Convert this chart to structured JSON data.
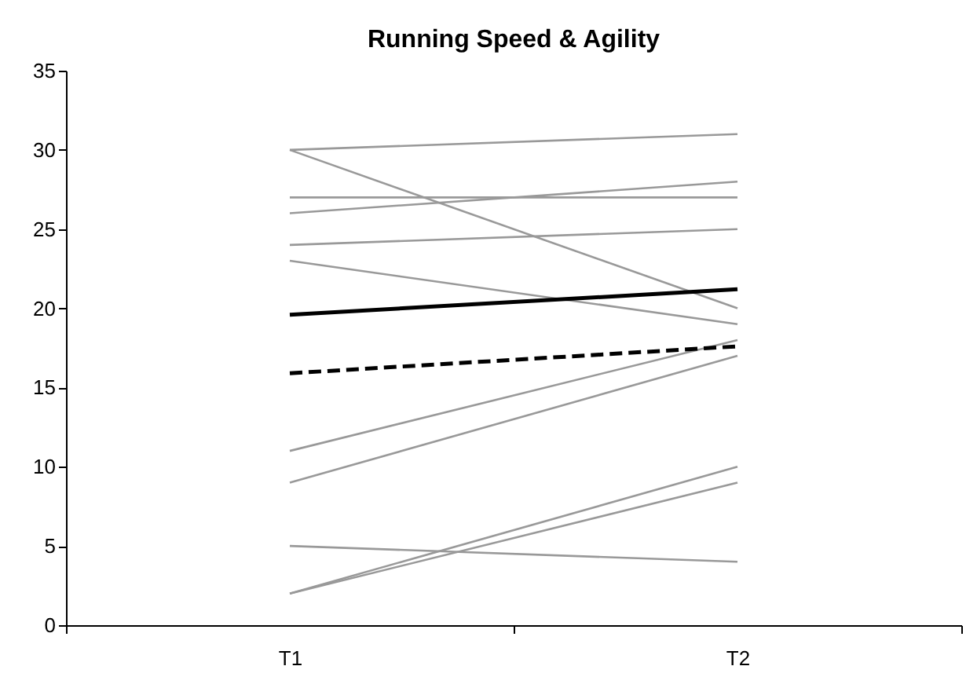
{
  "chart_data": {
    "type": "line",
    "title": "Running Speed & Agility",
    "categories": [
      "T1",
      "T2"
    ],
    "ylim": [
      0,
      35
    ],
    "yticks": [
      0,
      5,
      10,
      15,
      20,
      25,
      30,
      35
    ],
    "grid": false,
    "marker": "none",
    "series": [
      {
        "color": "#999999",
        "values": [
          30,
          31
        ]
      },
      {
        "color": "#999999",
        "values": [
          30,
          20
        ]
      },
      {
        "color": "#999999",
        "values": [
          27,
          27
        ]
      },
      {
        "color": "#999999",
        "values": [
          26,
          28
        ]
      },
      {
        "color": "#999999",
        "values": [
          24,
          25
        ]
      },
      {
        "color": "#999999",
        "values": [
          23,
          19
        ]
      },
      {
        "color": "#999999",
        "values": [
          11,
          18
        ]
      },
      {
        "color": "#999999",
        "values": [
          9,
          17
        ]
      },
      {
        "color": "#999999",
        "values": [
          5,
          4
        ]
      },
      {
        "color": "#999999",
        "values": [
          2,
          10
        ]
      },
      {
        "color": "#999999",
        "values": [
          2,
          9
        ]
      },
      {
        "color": "#000000",
        "values": [
          19.6,
          21.2
        ],
        "line_style": "solid"
      },
      {
        "color": "#000000",
        "values": [
          15.9,
          17.6
        ],
        "line_style": "dashed"
      }
    ]
  }
}
